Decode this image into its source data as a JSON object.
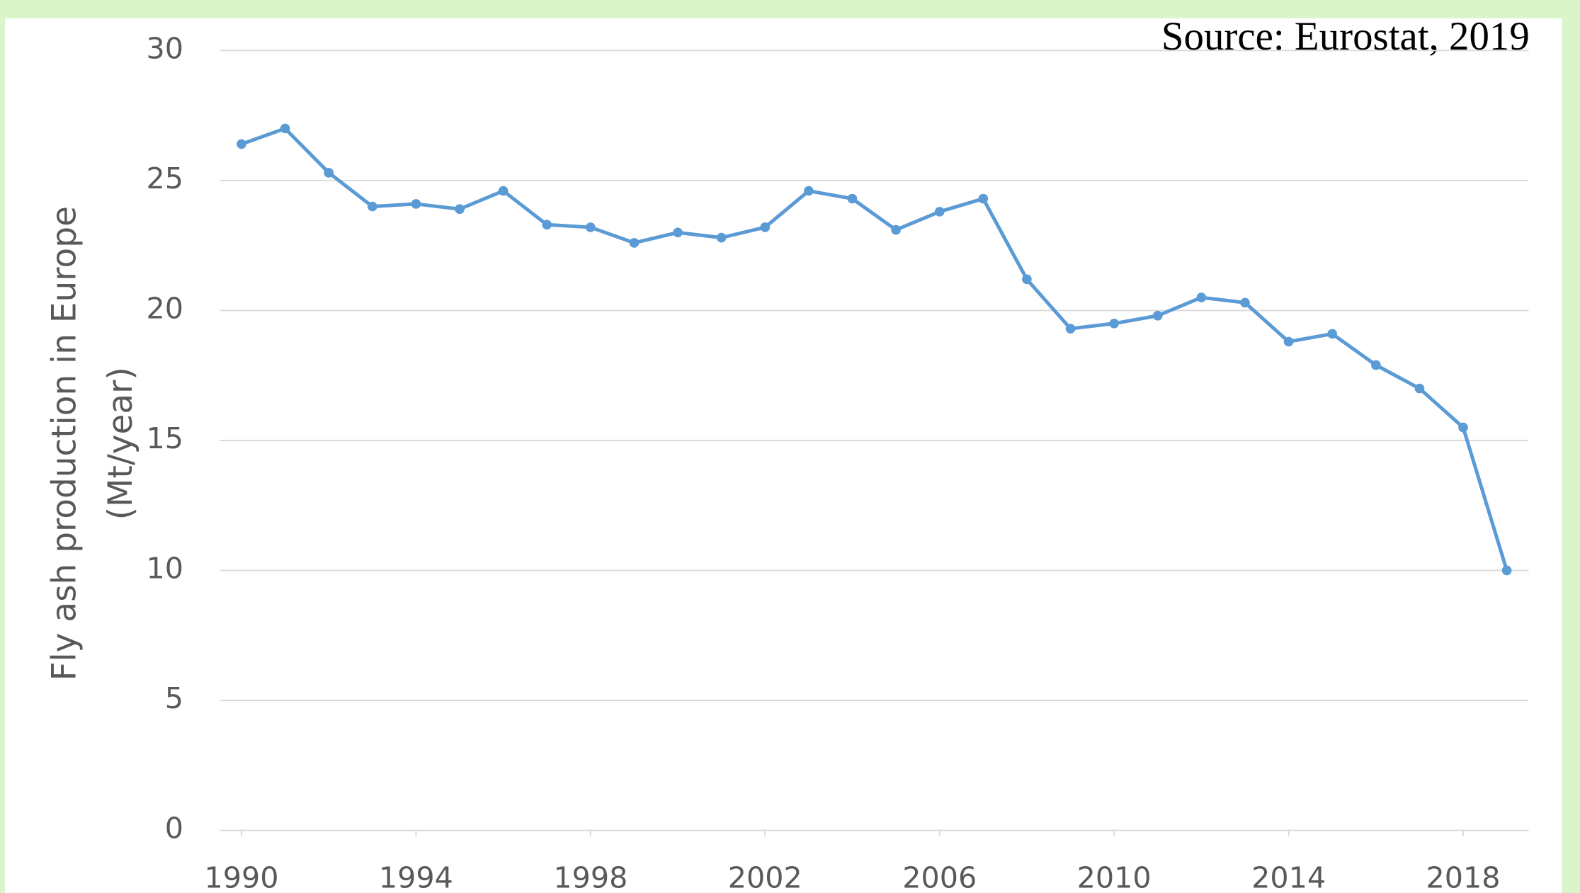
{
  "chart_data": {
    "type": "line",
    "ylabel": [
      "Fly ash production in Europe",
      "(Mt/year)"
    ],
    "annotation": "Source: Eurostat, 2019",
    "x": [
      1990,
      1991,
      1992,
      1993,
      1994,
      1995,
      1996,
      1997,
      1998,
      1999,
      2000,
      2001,
      2002,
      2003,
      2004,
      2005,
      2006,
      2007,
      2008,
      2009,
      2010,
      2011,
      2012,
      2013,
      2014,
      2015,
      2016,
      2017,
      2018,
      2019
    ],
    "series": [
      {
        "color": "#5b9bd5",
        "values": [
          26.4,
          27.0,
          25.3,
          24.0,
          24.1,
          23.9,
          24.6,
          23.3,
          23.2,
          22.6,
          23.0,
          22.8,
          23.2,
          24.6,
          24.3,
          23.1,
          23.8,
          24.3,
          21.2,
          19.3,
          19.5,
          19.8,
          20.5,
          20.3,
          18.8,
          19.1,
          17.9,
          17.0,
          15.5,
          10.0
        ]
      }
    ],
    "xlim": [
      1989.5,
      2019.5
    ],
    "xticks": [
      1990,
      1994,
      1998,
      2002,
      2006,
      2010,
      2014,
      2018
    ],
    "ylim": [
      0,
      30
    ],
    "yticks": [
      0,
      5,
      10,
      15,
      20,
      25,
      30
    ],
    "grid": true
  }
}
